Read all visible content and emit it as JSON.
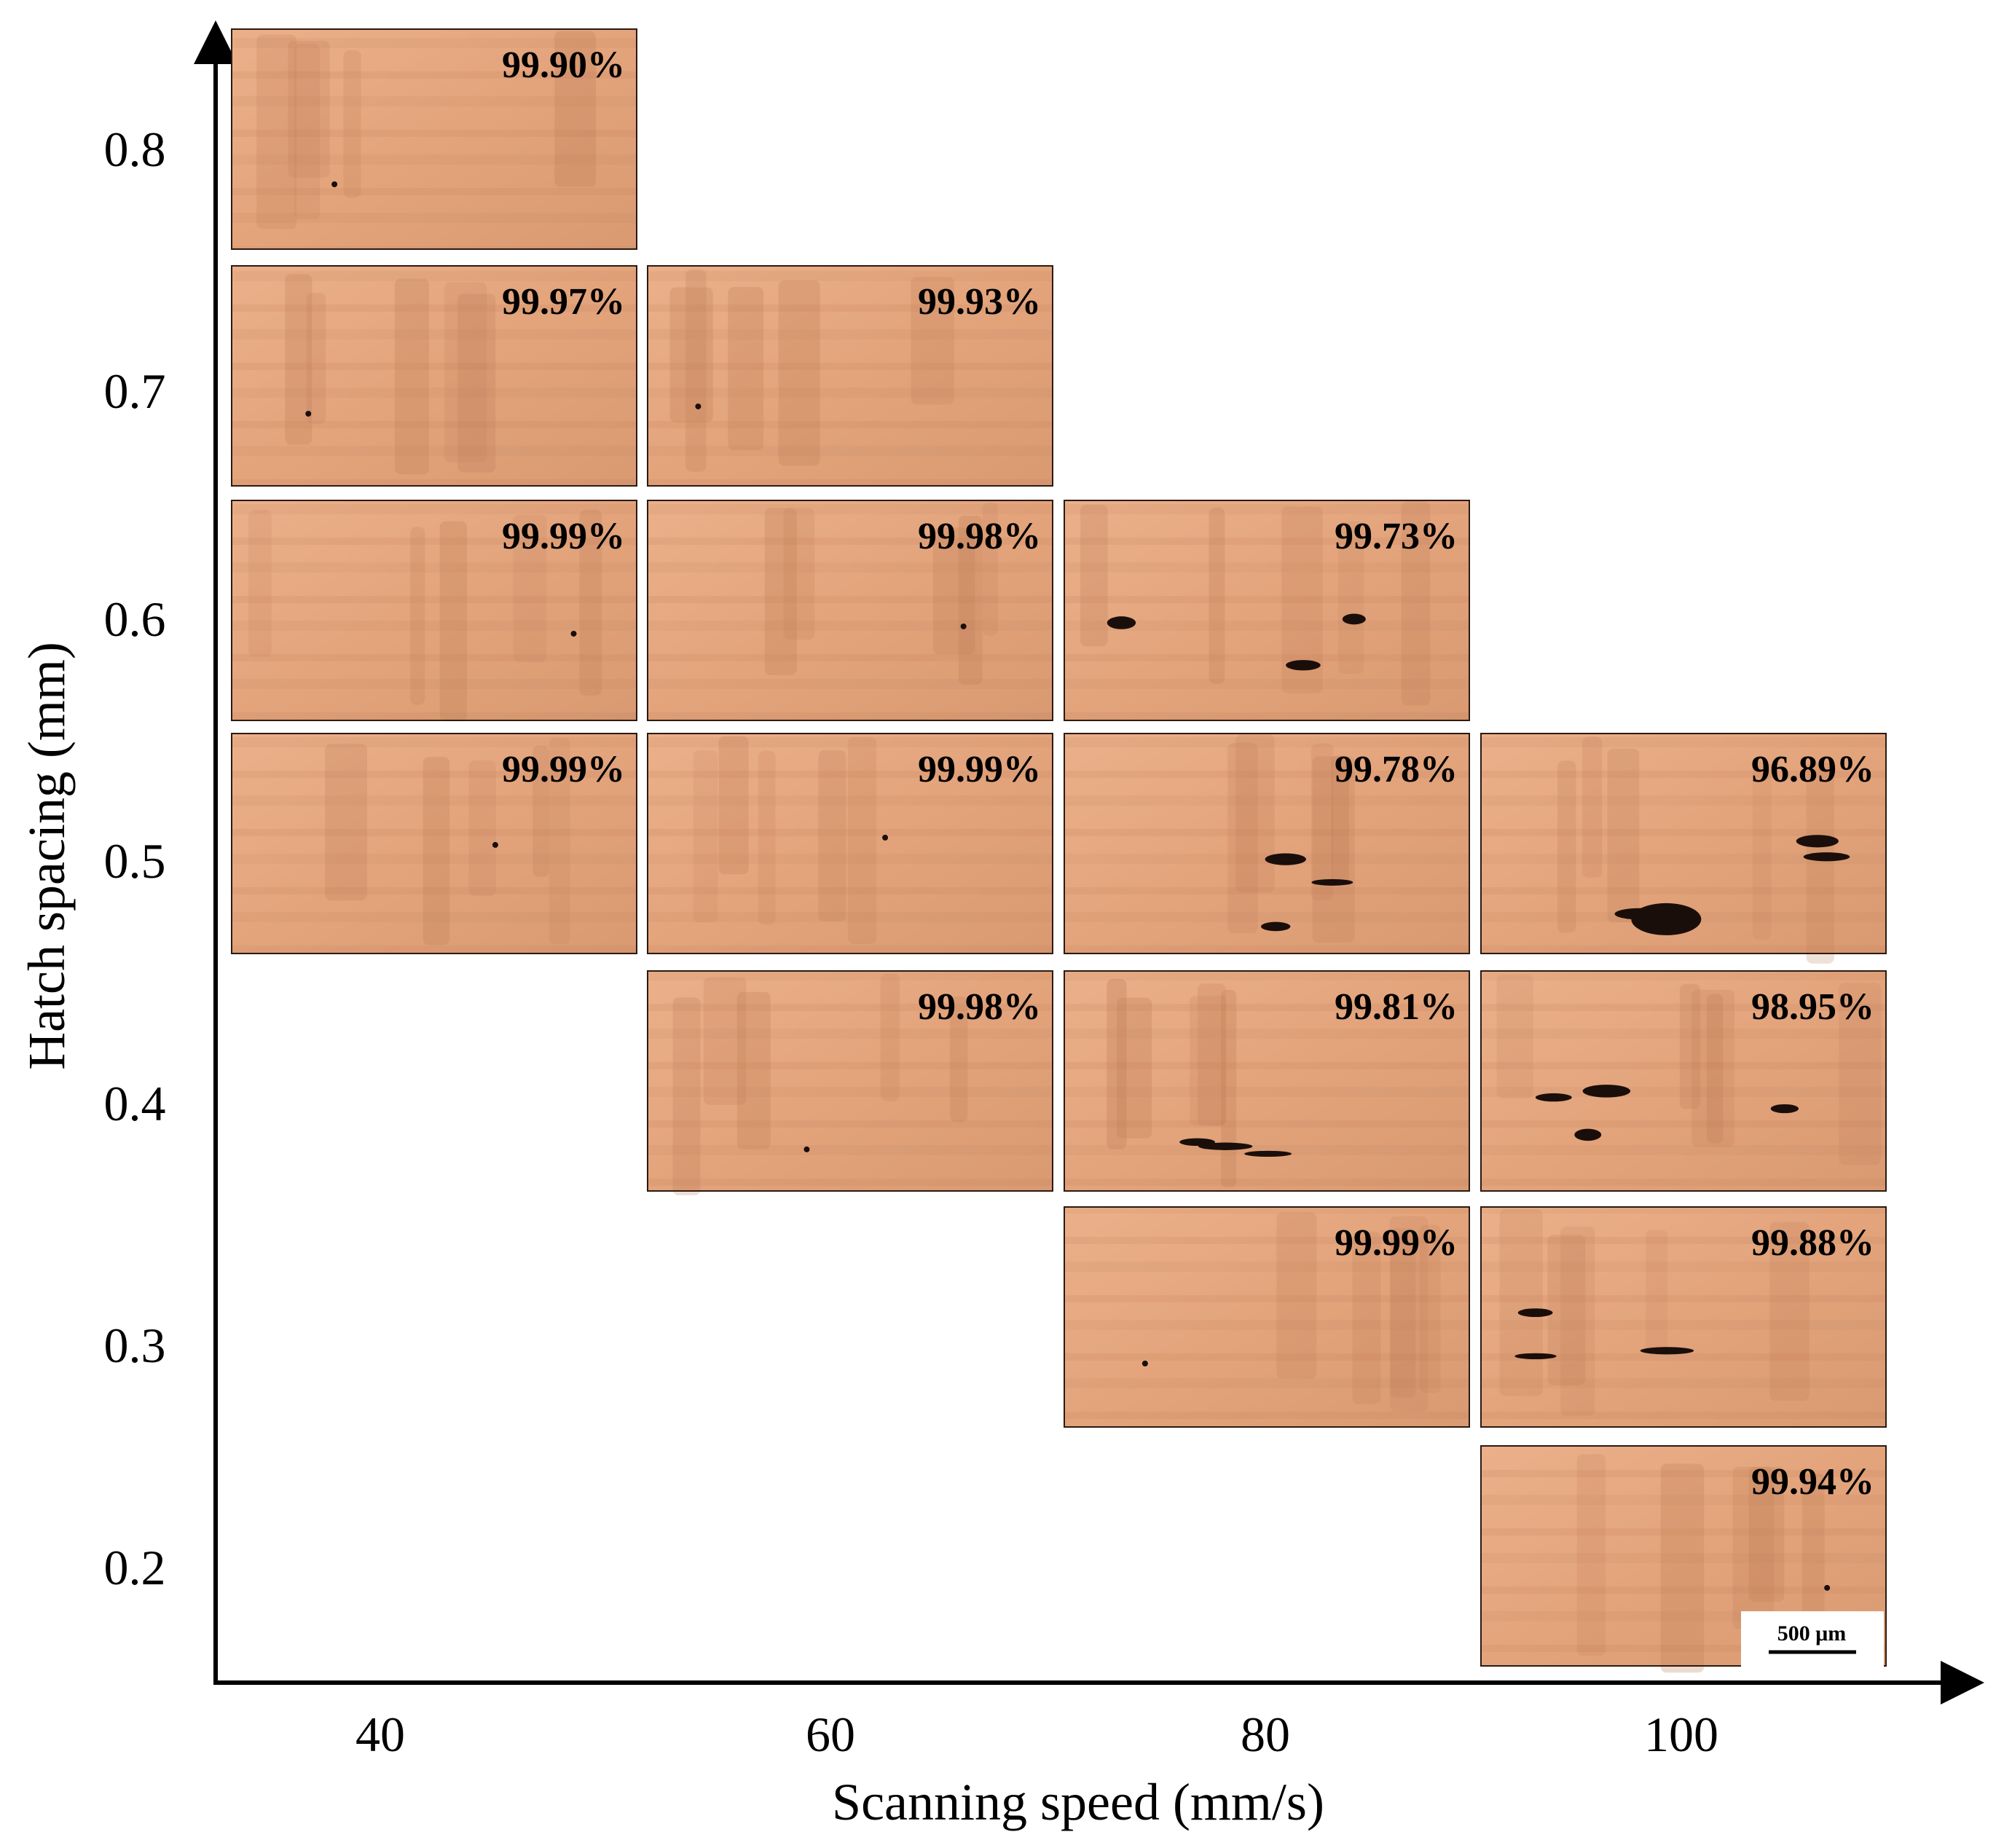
{
  "chart_data": {
    "type": "table",
    "title": "",
    "xlabel": "Scanning speed (mm/s)",
    "ylabel": "Hatch spacing (mm)",
    "x_ticks": [
      "40",
      "60",
      "80",
      "100"
    ],
    "y_ticks": [
      "0.8",
      "0.7",
      "0.6",
      "0.5",
      "0.4",
      "0.3",
      "0.2"
    ],
    "x": [
      40,
      60,
      80,
      100
    ],
    "y": [
      0.8,
      0.7,
      0.6,
      0.5,
      0.4,
      0.3,
      0.2
    ],
    "cells": [
      {
        "speed": 40,
        "hatch": 0.8,
        "density": "99.90%"
      },
      {
        "speed": 40,
        "hatch": 0.7,
        "density": "99.97%"
      },
      {
        "speed": 60,
        "hatch": 0.7,
        "density": "99.93%"
      },
      {
        "speed": 40,
        "hatch": 0.6,
        "density": "99.99%"
      },
      {
        "speed": 60,
        "hatch": 0.6,
        "density": "99.98%"
      },
      {
        "speed": 80,
        "hatch": 0.6,
        "density": "99.73%"
      },
      {
        "speed": 40,
        "hatch": 0.5,
        "density": "99.99%"
      },
      {
        "speed": 60,
        "hatch": 0.5,
        "density": "99.99%"
      },
      {
        "speed": 80,
        "hatch": 0.5,
        "density": "99.78%"
      },
      {
        "speed": 100,
        "hatch": 0.5,
        "density": "96.89%"
      },
      {
        "speed": 60,
        "hatch": 0.4,
        "density": "99.98%"
      },
      {
        "speed": 80,
        "hatch": 0.4,
        "density": "99.81%"
      },
      {
        "speed": 100,
        "hatch": 0.4,
        "density": "98.95%"
      },
      {
        "speed": 80,
        "hatch": 0.3,
        "density": "99.99%"
      },
      {
        "speed": 100,
        "hatch": 0.3,
        "density": "99.88%"
      },
      {
        "speed": 100,
        "hatch": 0.2,
        "density": "99.94%"
      }
    ],
    "scale_bar": "500 μm"
  },
  "colors": {
    "copper": "#e6a57c",
    "copper_dark": "#bd7c56",
    "pore": "#1a0e0a",
    "axis": "#000000"
  }
}
